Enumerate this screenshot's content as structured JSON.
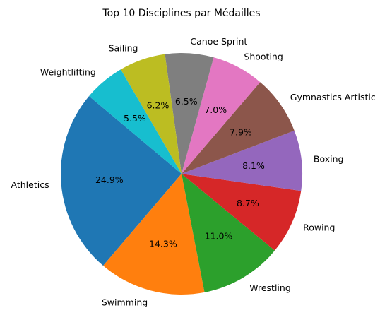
{
  "chart_data": {
    "type": "pie",
    "title": "Top 10 Disciplines par Médailles",
    "start_angle_deg": 140,
    "direction": "counterclockwise",
    "slices": [
      {
        "label": "Athletics",
        "value": 24.9,
        "pct_label": "24.9%",
        "color": "#1f77b4"
      },
      {
        "label": "Swimming",
        "value": 14.3,
        "pct_label": "14.3%",
        "color": "#ff7f0e"
      },
      {
        "label": "Wrestling",
        "value": 11.0,
        "pct_label": "11.0%",
        "color": "#2ca02c"
      },
      {
        "label": "Rowing",
        "value": 8.7,
        "pct_label": "8.7%",
        "color": "#d62728"
      },
      {
        "label": "Boxing",
        "value": 8.1,
        "pct_label": "8.1%",
        "color": "#9467bd"
      },
      {
        "label": "Gymnastics Artistic",
        "value": 7.9,
        "pct_label": "7.9%",
        "color": "#8c564b"
      },
      {
        "label": "Shooting",
        "value": 7.0,
        "pct_label": "7.0%",
        "color": "#e377c2"
      },
      {
        "label": "Canoe Sprint",
        "value": 6.5,
        "pct_label": "6.5%",
        "color": "#7f7f7f"
      },
      {
        "label": "Sailing",
        "value": 6.2,
        "pct_label": "6.2%",
        "color": "#bcbd22"
      },
      {
        "label": "Weightlifting",
        "value": 5.5,
        "pct_label": "5.5%",
        "color": "#17becf"
      }
    ]
  }
}
